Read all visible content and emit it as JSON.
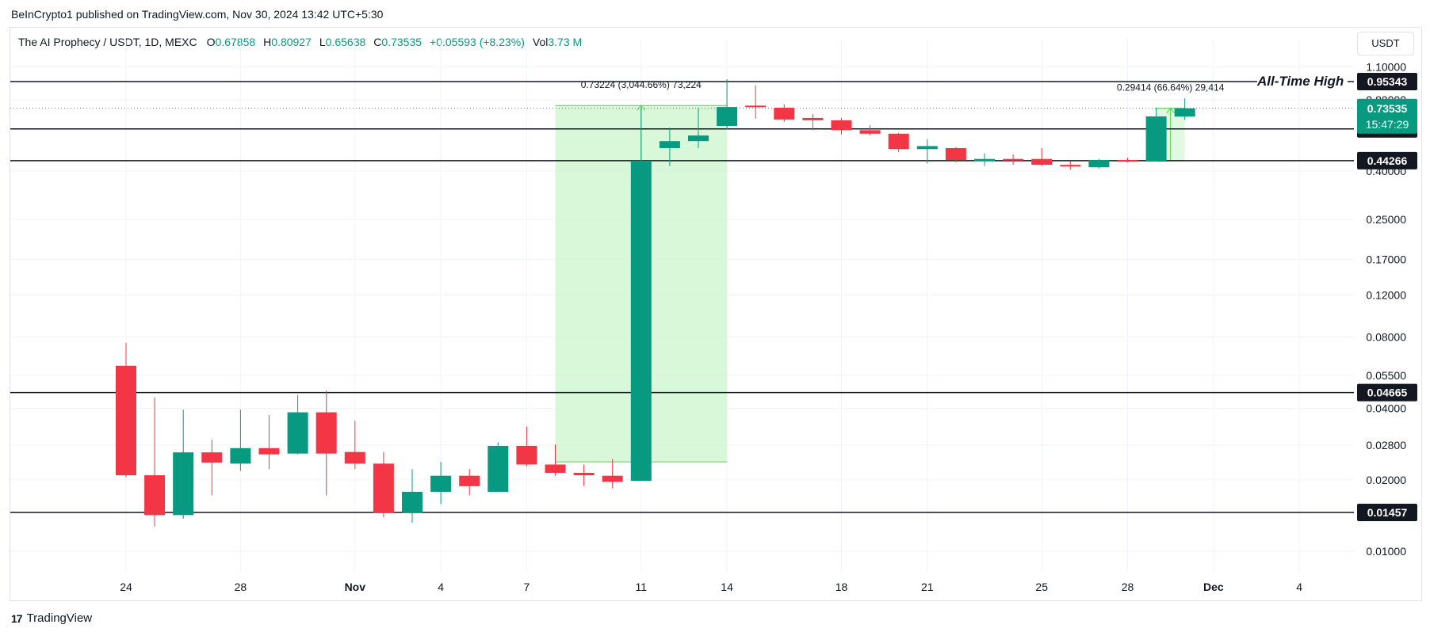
{
  "header": {
    "publisher_line": "BeInCrypto1 published on TradingView.com, Nov 30, 2024 13:42 UTC+5:30"
  },
  "legend": {
    "symbol": "The AI Prophecy / USDT, 1D, MEXC",
    "o_label": "O",
    "o_value": "0.67858",
    "h_label": "H",
    "h_value": "0.80927",
    "l_label": "L",
    "l_value": "0.65638",
    "c_label": "C",
    "c_value": "0.73535",
    "change": "+0.05593 (+8.23%)",
    "vol_label": "Vol",
    "vol_value": "3.73 M"
  },
  "currency_button": "USDT",
  "footer": {
    "brand": "TradingView",
    "logo_text": "17"
  },
  "colors": {
    "up": "#089981",
    "down": "#f23645",
    "measure_fill": "#ccf5cc",
    "measure_line": "#4cd44c"
  },
  "chart_data": {
    "type": "candlestick",
    "y_scale": "log",
    "ylim": [
      0.0085,
      1.15
    ],
    "x_tick_labels": [
      {
        "day": 0,
        "label": "24"
      },
      {
        "day": 4,
        "label": "28"
      },
      {
        "day": 8,
        "label": "Nov"
      },
      {
        "day": 11,
        "label": "4"
      },
      {
        "day": 14,
        "label": "7"
      },
      {
        "day": 18,
        "label": "11"
      },
      {
        "day": 21,
        "label": "14"
      },
      {
        "day": 25,
        "label": "18"
      },
      {
        "day": 28,
        "label": "21"
      },
      {
        "day": 32,
        "label": "25"
      },
      {
        "day": 35,
        "label": "28"
      },
      {
        "day": 38,
        "label": "Dec"
      },
      {
        "day": 41,
        "label": "4"
      }
    ],
    "y_tick_labels": [
      "1.10000",
      "0.80000",
      "0.40000",
      "0.25000",
      "0.17000",
      "0.12000",
      "0.08000",
      "0.05500",
      "0.04000",
      "0.02800",
      "0.02000",
      "0.01000"
    ],
    "y_tick_values": [
      1.1,
      0.8,
      0.4,
      0.25,
      0.17,
      0.12,
      0.08,
      0.055,
      0.04,
      0.028,
      0.02,
      0.01
    ],
    "candles": [
      {
        "date": "Oct 24",
        "o": 0.0605,
        "h": 0.0755,
        "l": 0.0205,
        "c": 0.0209
      },
      {
        "date": "Oct 25",
        "o": 0.0209,
        "h": 0.0445,
        "l": 0.0127,
        "c": 0.0142
      },
      {
        "date": "Oct 26",
        "o": 0.0142,
        "h": 0.0395,
        "l": 0.0137,
        "c": 0.0261
      },
      {
        "date": "Oct 27",
        "o": 0.0261,
        "h": 0.0295,
        "l": 0.0172,
        "c": 0.0236
      },
      {
        "date": "Oct 28",
        "o": 0.0234,
        "h": 0.0395,
        "l": 0.0218,
        "c": 0.0272
      },
      {
        "date": "Oct 29",
        "o": 0.0272,
        "h": 0.0375,
        "l": 0.0222,
        "c": 0.0256
      },
      {
        "date": "Oct 30",
        "o": 0.0258,
        "h": 0.0455,
        "l": 0.0256,
        "c": 0.0385
      },
      {
        "date": "Oct 31",
        "o": 0.0385,
        "h": 0.0475,
        "l": 0.0172,
        "c": 0.0258
      },
      {
        "date": "Nov 1",
        "o": 0.0262,
        "h": 0.0355,
        "l": 0.0222,
        "c": 0.0234
      },
      {
        "date": "Nov 2",
        "o": 0.0234,
        "h": 0.0262,
        "l": 0.0139,
        "c": 0.0145
      },
      {
        "date": "Nov 3",
        "o": 0.0145,
        "h": 0.0222,
        "l": 0.0132,
        "c": 0.0178
      },
      {
        "date": "Nov 4",
        "o": 0.0178,
        "h": 0.0238,
        "l": 0.0158,
        "c": 0.0208
      },
      {
        "date": "Nov 5",
        "o": 0.0208,
        "h": 0.0222,
        "l": 0.0172,
        "c": 0.0188
      },
      {
        "date": "Nov 6",
        "o": 0.0178,
        "h": 0.0288,
        "l": 0.0178,
        "c": 0.0278
      },
      {
        "date": "Nov 7",
        "o": 0.0278,
        "h": 0.0335,
        "l": 0.0228,
        "c": 0.0232
      },
      {
        "date": "Nov 8",
        "o": 0.0232,
        "h": 0.0282,
        "l": 0.0208,
        "c": 0.0214
      },
      {
        "date": "Nov 9",
        "o": 0.0214,
        "h": 0.0232,
        "l": 0.0188,
        "c": 0.0209
      },
      {
        "date": "Nov 10",
        "o": 0.0208,
        "h": 0.0245,
        "l": 0.0184,
        "c": 0.0196
      },
      {
        "date": "Nov 11",
        "o": 0.0198,
        "h": 0.735,
        "l": 0.0198,
        "c": 0.4425
      },
      {
        "date": "Nov 12",
        "o": 0.5,
        "h": 0.61,
        "l": 0.42,
        "c": 0.535
      },
      {
        "date": "Nov 13",
        "o": 0.535,
        "h": 0.74,
        "l": 0.5,
        "c": 0.565
      },
      {
        "date": "Nov 14",
        "o": 0.62,
        "h": 0.975,
        "l": 0.6,
        "c": 0.745
      },
      {
        "date": "Nov 15",
        "o": 0.755,
        "h": 0.92,
        "l": 0.665,
        "c": 0.75
      },
      {
        "date": "Nov 16",
        "o": 0.74,
        "h": 0.765,
        "l": 0.645,
        "c": 0.66
      },
      {
        "date": "Nov 17",
        "o": 0.67,
        "h": 0.695,
        "l": 0.595,
        "c": 0.655
      },
      {
        "date": "Nov 18",
        "o": 0.655,
        "h": 0.67,
        "l": 0.57,
        "c": 0.595
      },
      {
        "date": "Nov 19",
        "o": 0.595,
        "h": 0.625,
        "l": 0.565,
        "c": 0.575
      },
      {
        "date": "Nov 20",
        "o": 0.575,
        "h": 0.58,
        "l": 0.48,
        "c": 0.495
      },
      {
        "date": "Nov 21",
        "o": 0.495,
        "h": 0.545,
        "l": 0.43,
        "c": 0.51
      },
      {
        "date": "Nov 22",
        "o": 0.5,
        "h": 0.505,
        "l": 0.435,
        "c": 0.445
      },
      {
        "date": "Nov 23",
        "o": 0.44,
        "h": 0.475,
        "l": 0.42,
        "c": 0.45
      },
      {
        "date": "Nov 24",
        "o": 0.45,
        "h": 0.47,
        "l": 0.425,
        "c": 0.445
      },
      {
        "date": "Nov 25",
        "o": 0.45,
        "h": 0.5,
        "l": 0.42,
        "c": 0.425
      },
      {
        "date": "Nov 26",
        "o": 0.425,
        "h": 0.44,
        "l": 0.405,
        "c": 0.418
      },
      {
        "date": "Nov 27",
        "o": 0.415,
        "h": 0.45,
        "l": 0.41,
        "c": 0.445
      },
      {
        "date": "Nov 28",
        "o": 0.445,
        "h": 0.455,
        "l": 0.435,
        "c": 0.44
      },
      {
        "date": "Nov 29",
        "o": 0.442,
        "h": 0.74,
        "l": 0.44,
        "c": 0.68
      },
      {
        "date": "Nov 30",
        "o": 0.67858,
        "h": 0.80927,
        "l": 0.65638,
        "c": 0.73535
      }
    ],
    "horizontal_levels": [
      {
        "value": 0.95343,
        "label": "0.95343"
      },
      {
        "value": 0.60213,
        "label": "0.60213"
      },
      {
        "value": 0.44266,
        "label": "0.44266"
      },
      {
        "value": 0.04665,
        "label": "0.04665"
      },
      {
        "value": 0.01457,
        "label": "0.01457"
      }
    ],
    "ath_annotation": "All-Time High",
    "ath_value": 0.95343,
    "current_price": {
      "value": 0.73535,
      "label": "0.73535",
      "countdown": "15:47:29"
    },
    "measurements": [
      {
        "from_day": 15,
        "to_day": 21,
        "from_price": 0.0238,
        "to_price": 0.756,
        "label": "0.73224 (3,044.66%) 73,224"
      },
      {
        "from_day": 36,
        "to_day": 37,
        "from_price": 0.4415,
        "to_price": 0.7357,
        "label": "0.29414 (66.64%) 29,414"
      }
    ]
  }
}
